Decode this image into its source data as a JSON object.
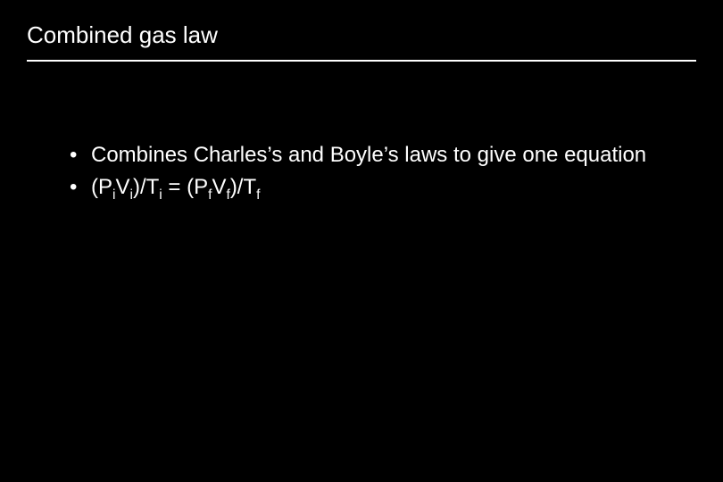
{
  "slide": {
    "background_color": "#000000",
    "text_color": "#ffffff",
    "rule_color": "#ffffff",
    "title": "Combined gas law",
    "title_fontsize": 26,
    "bullet_fontsize": 24,
    "bullets": [
      {
        "text": "Combines Charles’s and Boyle’s laws to give one equation"
      },
      {
        "text_html_parts": [
          {
            "t": "(P"
          },
          {
            "sub": "i"
          },
          {
            "t": "V"
          },
          {
            "sub": "i"
          },
          {
            "t": ")/T"
          },
          {
            "sub": "i"
          },
          {
            "t": " = (P"
          },
          {
            "sub": "f"
          },
          {
            "t": "V"
          },
          {
            "sub": "f"
          },
          {
            "t": ")/T"
          },
          {
            "sub": "f"
          }
        ]
      }
    ]
  }
}
